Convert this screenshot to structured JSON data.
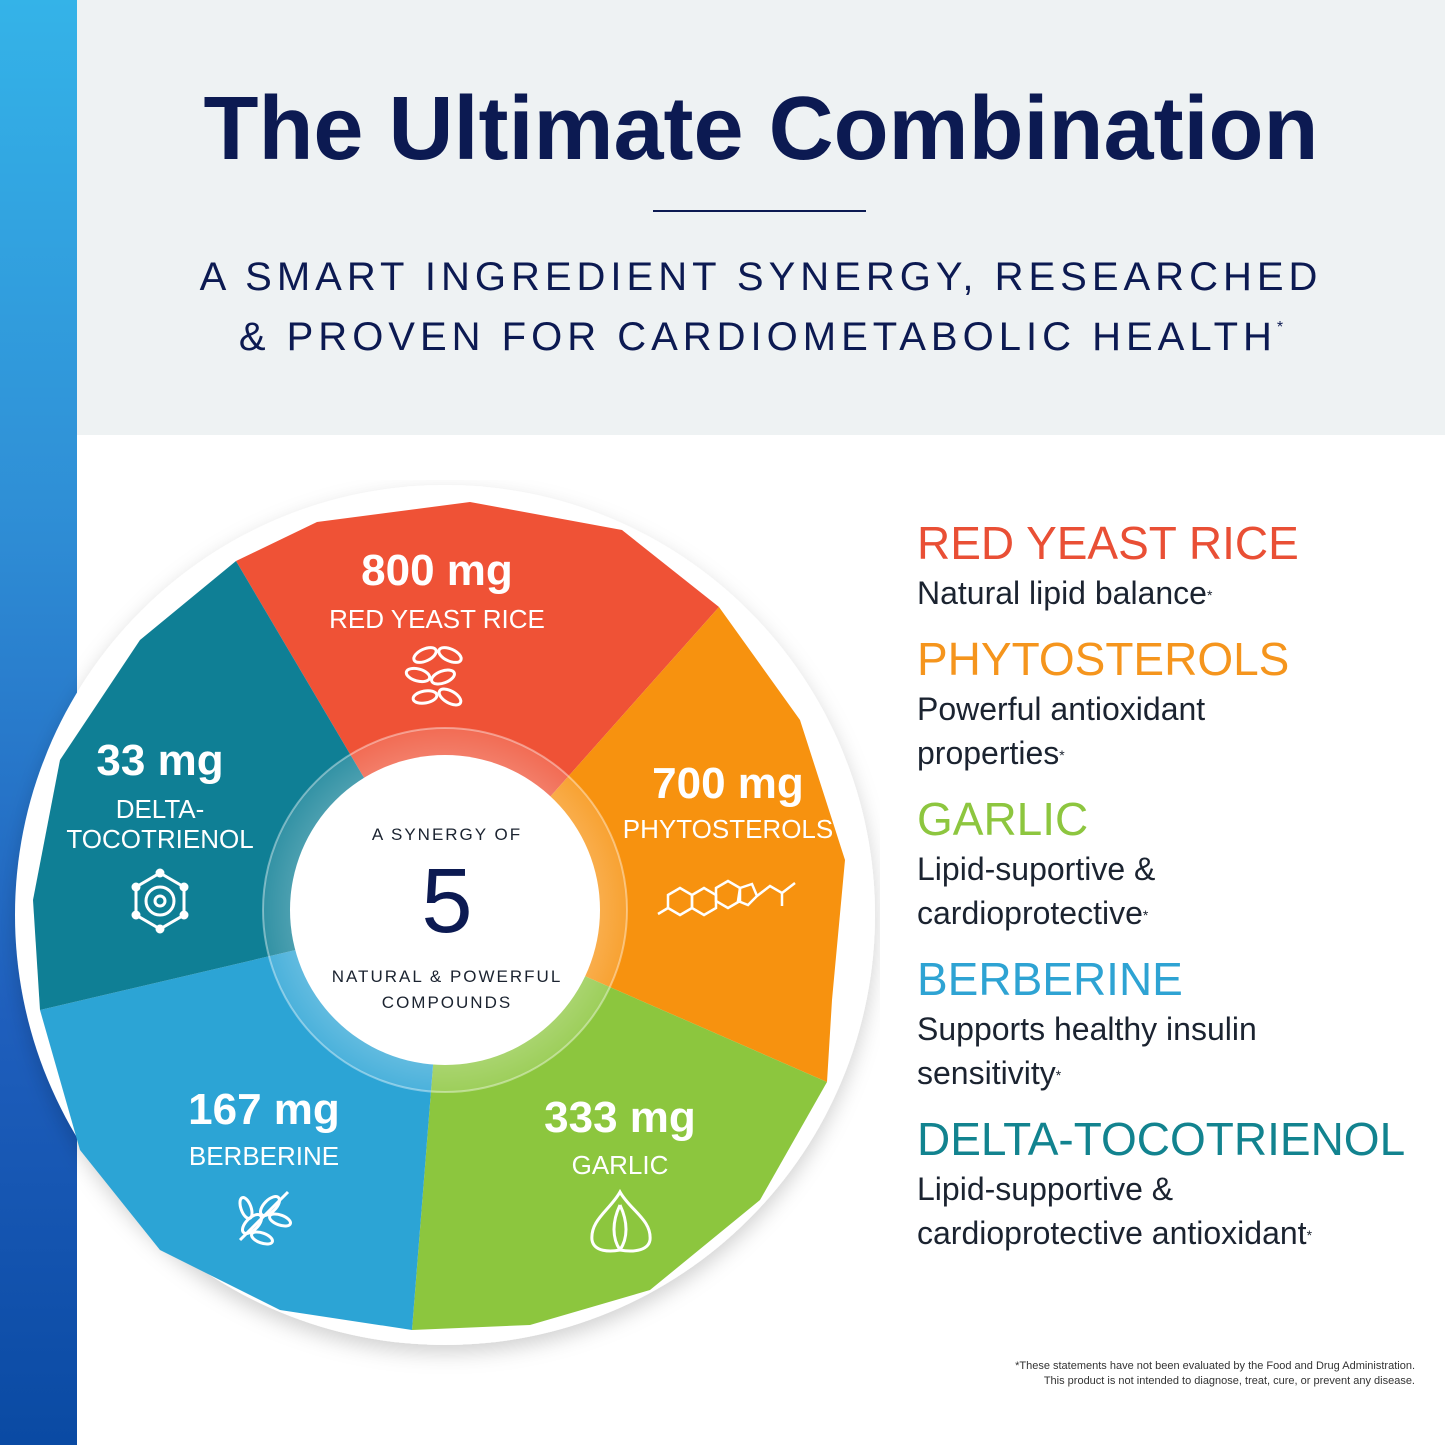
{
  "header": {
    "title": "The Ultimate Combination",
    "subtitle_line1": "A SMART INGREDIENT SYNERGY, RESEARCHED",
    "subtitle_line2": "& PROVEN FOR CARDIOMETABOLIC HEALTH",
    "subtitle_mark": "*"
  },
  "wheel": {
    "center_top": "A SYNERGY OF",
    "center_number": "5",
    "center_bottom_line1": "NATURAL & POWERFUL",
    "center_bottom_line2": "COMPOUNDS",
    "segments": [
      {
        "amount": "800 mg",
        "label": "RED YEAST RICE",
        "icon": "rice-grains-icon",
        "color": "#ef5236"
      },
      {
        "amount": "700 mg",
        "label": "PHYTOSTEROLS",
        "icon": "molecule-structure-icon",
        "color": "#f7920f"
      },
      {
        "amount": "333 mg",
        "label": "GARLIC",
        "icon": "garlic-icon",
        "color": "#8cc63e"
      },
      {
        "amount": "167 mg",
        "label": "BERBERINE",
        "icon": "leaf-branch-icon",
        "color": "#2ca4d5"
      },
      {
        "amount": "33 mg",
        "label_line1": "DELTA-",
        "label_line2": "TOCOTRIENOL",
        "icon": "atom-icon",
        "color": "#0f7f95"
      }
    ]
  },
  "legend": [
    {
      "name": "RED YEAST RICE",
      "desc": "Natural lipid balance",
      "mark": "*",
      "color": "#e94f35"
    },
    {
      "name": "PHYTOSTEROLS",
      "desc_line1": "Powerful antioxidant",
      "desc_line2": "properties",
      "mark": "*",
      "color": "#f5951d"
    },
    {
      "name": "GARLIC",
      "desc_line1": "Lipid-suportive &",
      "desc_line2": "cardioprotective",
      "mark": "*",
      "color": "#8dc63f"
    },
    {
      "name": "BERBERINE",
      "desc_line1": "Supports healthy insulin",
      "desc_line2": "sensitivity",
      "mark": "*",
      "color": "#2ea3d3"
    },
    {
      "name": "DELTA-TOCOTRIENOL",
      "desc_line1": "Lipid-supportive &",
      "desc_line2": "cardioprotective antioxidant",
      "mark": "*",
      "color": "#12838f"
    }
  ],
  "footnote": {
    "line1": "*These statements have not been evaluated by the Food and Drug Administration.",
    "line2": "This product is not intended to diagnose, treat, cure, or prevent any disease."
  }
}
